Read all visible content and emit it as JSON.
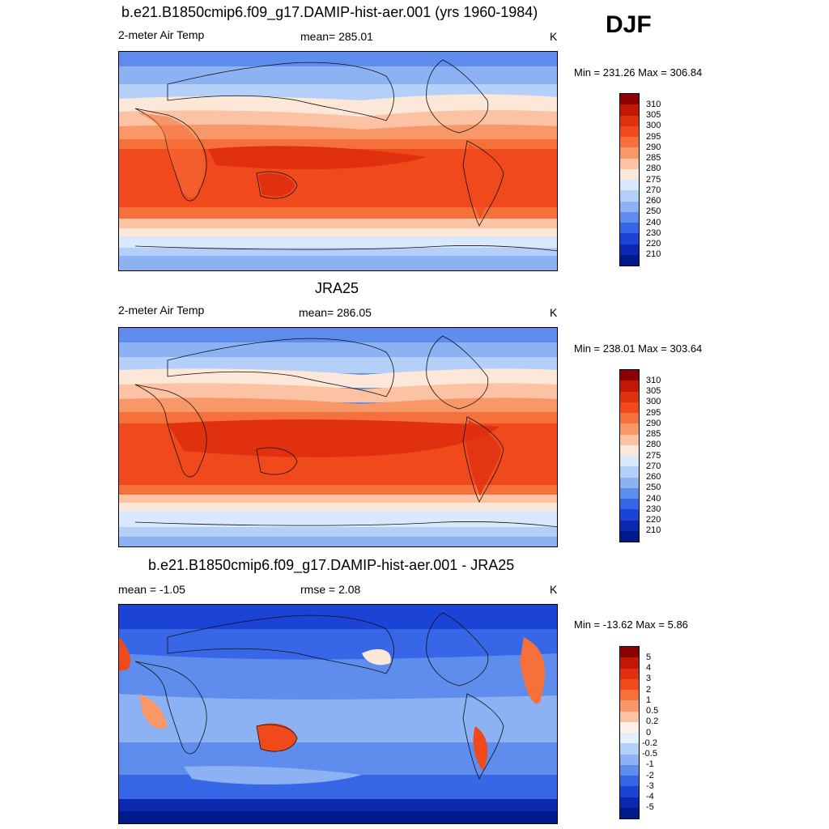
{
  "season": "DJF",
  "panels": [
    {
      "id": "model",
      "title": "b.e21.B1850cmip6.f09_g17.DAMIP-hist-aer.001 (yrs 1960-1984)",
      "left_label": "2-meter Air Temp",
      "center_label": "mean= 285.01",
      "units": "K",
      "minmax": "Min = 231.26 Max = 306.84",
      "colorbar_labels": [
        "310",
        "305",
        "300",
        "295",
        "290",
        "285",
        "280",
        "275",
        "270",
        "260",
        "250",
        "240",
        "230",
        "220",
        "210"
      ],
      "colorbar_colors": [
        "#8b0000",
        "#c21807",
        "#e03010",
        "#f04a1c",
        "#f5703a",
        "#f89868",
        "#fbc3a3",
        "#fde7d9",
        "#d9e8fb",
        "#b5d0f8",
        "#8cb2f3",
        "#5e8ded",
        "#3767e6",
        "#1b44d6",
        "#0a28b0",
        "#001a8c"
      ]
    },
    {
      "id": "obs",
      "title": "JRA25",
      "left_label": "2-meter Air Temp",
      "center_label": "mean= 286.05",
      "units": "K",
      "minmax": "Min = 238.01 Max = 303.64",
      "colorbar_labels": [
        "310",
        "305",
        "300",
        "295",
        "290",
        "285",
        "280",
        "275",
        "270",
        "260",
        "250",
        "240",
        "230",
        "220",
        "210"
      ],
      "colorbar_colors": [
        "#8b0000",
        "#c21807",
        "#e03010",
        "#f04a1c",
        "#f5703a",
        "#f89868",
        "#fbc3a3",
        "#fde7d9",
        "#d9e8fb",
        "#b5d0f8",
        "#8cb2f3",
        "#5e8ded",
        "#3767e6",
        "#1b44d6",
        "#0a28b0",
        "#001a8c"
      ]
    },
    {
      "id": "diff",
      "title": "b.e21.B1850cmip6.f09_g17.DAMIP-hist-aer.001 - JRA25",
      "left_label": "mean =  -1.05",
      "center_label": "rmse =   2.08",
      "units": "K",
      "minmax": "Min = -13.62 Max =   5.86",
      "colorbar_labels": [
        "5",
        "4",
        "3",
        "2",
        "1",
        "0.5",
        "0.2",
        "0",
        "-0.2",
        "-0.5",
        "-1",
        "-2",
        "-3",
        "-4",
        "-5"
      ],
      "colorbar_colors": [
        "#8b0000",
        "#c21807",
        "#e03010",
        "#f04a1c",
        "#f5703a",
        "#f89868",
        "#fbc3a3",
        "#fdf3ec",
        "#e4eefc",
        "#b5d0f8",
        "#8cb2f3",
        "#5e8ded",
        "#3767e6",
        "#1b44d6",
        "#0a28b0",
        "#001a8c"
      ]
    }
  ]
}
